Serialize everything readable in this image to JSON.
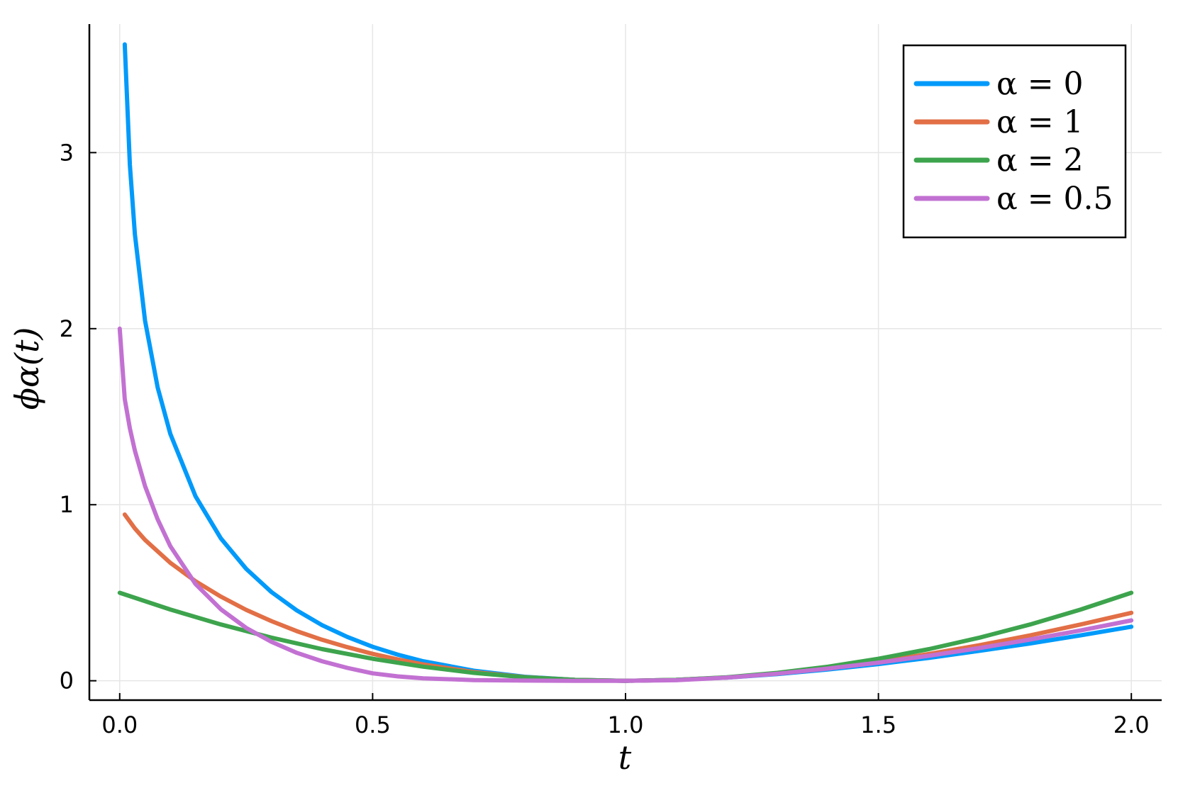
{
  "chart_data": {
    "type": "line",
    "title": "",
    "xlabel": "t",
    "ylabel": "ϕα(t)",
    "xlim": [
      -0.06,
      2.06
    ],
    "ylim": [
      -0.11,
      3.73
    ],
    "grid": true,
    "legend_position": "top-right",
    "x_ticks": [
      {
        "value": 0.0,
        "label": "0.0"
      },
      {
        "value": 0.5,
        "label": "0.5"
      },
      {
        "value": 1.0,
        "label": "1.0"
      },
      {
        "value": 1.5,
        "label": "1.5"
      },
      {
        "value": 2.0,
        "label": "2.0"
      }
    ],
    "y_ticks": [
      {
        "value": 0,
        "label": "0"
      },
      {
        "value": 1,
        "label": "1"
      },
      {
        "value": 2,
        "label": "2"
      },
      {
        "value": 3,
        "label": "3"
      }
    ],
    "series": [
      {
        "name": "α = 0",
        "color": "#009AFA",
        "x": [
          0.01,
          0.02,
          0.03,
          0.05,
          0.075,
          0.1,
          0.15,
          0.2,
          0.25,
          0.3,
          0.35,
          0.4,
          0.45,
          0.5,
          0.55,
          0.6,
          0.7,
          0.8,
          0.9,
          1.0,
          1.1,
          1.2,
          1.3,
          1.4,
          1.5,
          1.6,
          1.7,
          1.8,
          1.9,
          2.0
        ],
        "y": [
          3.615,
          2.932,
          2.536,
          2.046,
          1.666,
          1.403,
          1.047,
          0.809,
          0.636,
          0.504,
          0.4,
          0.316,
          0.249,
          0.193,
          0.148,
          0.111,
          0.057,
          0.023,
          0.005,
          0.0,
          0.005,
          0.018,
          0.038,
          0.064,
          0.095,
          0.13,
          0.17,
          0.212,
          0.258,
          0.307
        ]
      },
      {
        "name": "α = 1",
        "color": "#E26F46",
        "x": [
          0.01,
          0.03,
          0.05,
          0.1,
          0.15,
          0.2,
          0.25,
          0.3,
          0.35,
          0.4,
          0.45,
          0.5,
          0.55,
          0.6,
          0.7,
          0.8,
          0.9,
          1.0,
          1.1,
          1.2,
          1.3,
          1.4,
          1.5,
          1.6,
          1.7,
          1.8,
          1.9,
          2.0
        ],
        "y": [
          0.944,
          0.865,
          0.8,
          0.67,
          0.565,
          0.478,
          0.403,
          0.339,
          0.282,
          0.233,
          0.191,
          0.153,
          0.121,
          0.093,
          0.05,
          0.021,
          0.005,
          0.0,
          0.005,
          0.019,
          0.041,
          0.071,
          0.108,
          0.152,
          0.202,
          0.258,
          0.32,
          0.386
        ]
      },
      {
        "name": "α = 2",
        "color": "#3DA44D",
        "x": [
          0.0,
          0.1,
          0.2,
          0.3,
          0.4,
          0.5,
          0.6,
          0.7,
          0.8,
          0.9,
          1.0,
          1.1,
          1.2,
          1.3,
          1.4,
          1.5,
          1.6,
          1.7,
          1.8,
          1.9,
          2.0
        ],
        "y": [
          0.5,
          0.405,
          0.32,
          0.245,
          0.18,
          0.125,
          0.08,
          0.045,
          0.02,
          0.005,
          0.0,
          0.005,
          0.02,
          0.045,
          0.08,
          0.125,
          0.18,
          0.245,
          0.32,
          0.405,
          0.5
        ]
      },
      {
        "name": "α = 0.5",
        "color": "#C271D2",
        "x": [
          0.0,
          0.01,
          0.02,
          0.03,
          0.05,
          0.075,
          0.1,
          0.15,
          0.2,
          0.25,
          0.3,
          0.35,
          0.4,
          0.45,
          0.5,
          0.55,
          0.6,
          0.7,
          0.8,
          0.9,
          1.0,
          1.1,
          1.2,
          1.3,
          1.4,
          1.5,
          1.6,
          1.7,
          1.8,
          1.9,
          2.0
        ],
        "y": [
          2.0,
          1.6,
          1.434,
          1.307,
          1.106,
          0.917,
          0.765,
          0.549,
          0.406,
          0.3,
          0.221,
          0.159,
          0.111,
          0.073,
          0.042,
          0.025,
          0.014,
          0.004,
          0.001,
          0.0,
          0.0,
          0.003,
          0.018,
          0.04,
          0.069,
          0.103,
          0.142,
          0.186,
          0.234,
          0.286,
          0.343
        ]
      }
    ]
  }
}
